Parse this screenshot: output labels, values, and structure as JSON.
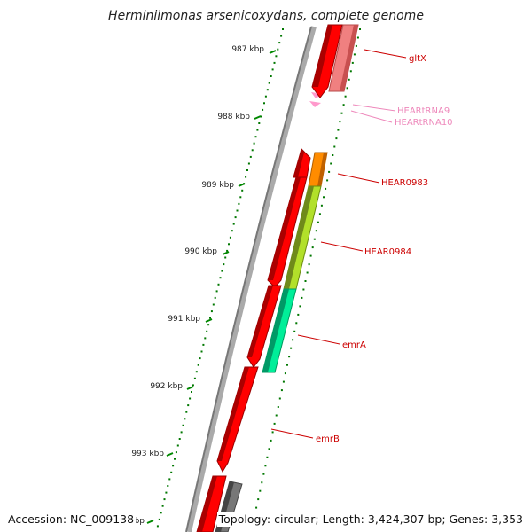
{
  "title": "Herminiimonas arsenicoxydans, complete genome",
  "footer": {
    "accession": "Accession: NC_009138",
    "topology": "Topology: circular; Length: 3,424,307 bp; Genes: 3,353"
  },
  "ticks": [
    "987 kbp",
    "988 kbp",
    "989 kbp",
    "990 kbp",
    "991 kbp",
    "992 kbp",
    "993 kbp",
    "kbp"
  ],
  "gene_labels": [
    {
      "name": "gltX",
      "color": "#cc0000"
    },
    {
      "name": "HEARtRNA9",
      "color": "#ee88bb"
    },
    {
      "name": "HEARtRNA10",
      "color": "#ee88bb"
    },
    {
      "name": "HEAR0983",
      "color": "#cc0000"
    },
    {
      "name": "HEAR0984",
      "color": "#cc0000"
    },
    {
      "name": "emrA",
      "color": "#cc0000"
    },
    {
      "name": "emrB",
      "color": "#cc0000"
    }
  ],
  "colors": {
    "backbone": "#888888",
    "gene_red": "#ff0000",
    "gene_light": "#f08080",
    "trna": "#ff99cc",
    "hear0983": "#ff8800",
    "hear0984": "#aadd22",
    "emrA": "#00ee99",
    "gray_gene": "#666666",
    "tick_dot": "#007700"
  }
}
